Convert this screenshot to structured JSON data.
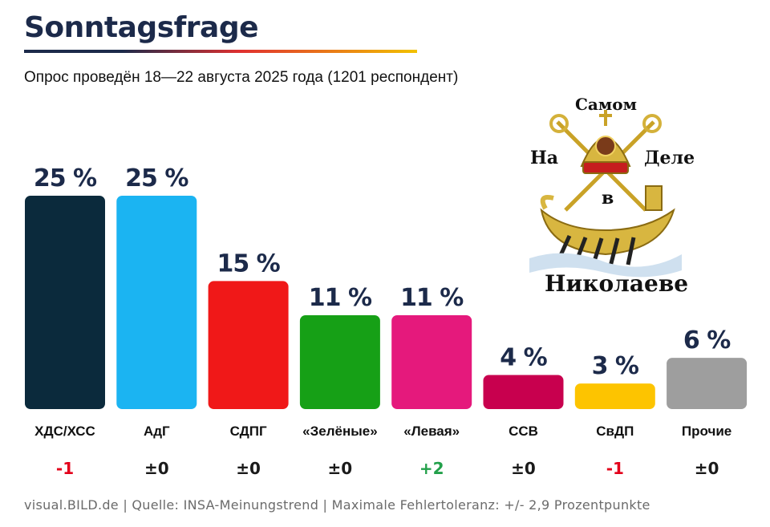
{
  "header": {
    "title": "Sonntagsfrage",
    "subtitle": "Опрос проведён 18—22 августа 2025 года (1201 респондент)"
  },
  "footer": {
    "source": "visual.BILD.de | Quelle: INSA-Meinungstrend | Maximale Fehlertoleranz: +/- 2,9 Prozentpunkte"
  },
  "watermark": {
    "line1": "Самом",
    "line2_left": "На",
    "line2_right": "Деле",
    "line3": "в",
    "line4": "Николаеве"
  },
  "chart_data": {
    "type": "bar",
    "categories": [
      "ХДС/ХСС",
      "АдГ",
      "СДПГ",
      "«Зелёные»",
      "«Левая»",
      "ССВ",
      "СвДП",
      "Прочие"
    ],
    "values": [
      25,
      25,
      15,
      11,
      11,
      4,
      3,
      6
    ],
    "value_labels": [
      "25 %",
      "25 %",
      "15 %",
      "11 %",
      "11 %",
      "4 %",
      "3 %",
      "6 %"
    ],
    "changes": [
      "-1",
      "±0",
      "±0",
      "±0",
      "+2",
      "±0",
      "-1",
      "±0"
    ],
    "colors": [
      "#0b2a3c",
      "#1bb4f2",
      "#f01818",
      "#16a016",
      "#e5197c",
      "#c8004e",
      "#fdc400",
      "#9e9e9e"
    ],
    "change_colors": {
      "negative": "#e3001b",
      "neutral": "#1a1a1a",
      "positive": "#22a04a"
    },
    "ylim": [
      0,
      25
    ]
  }
}
